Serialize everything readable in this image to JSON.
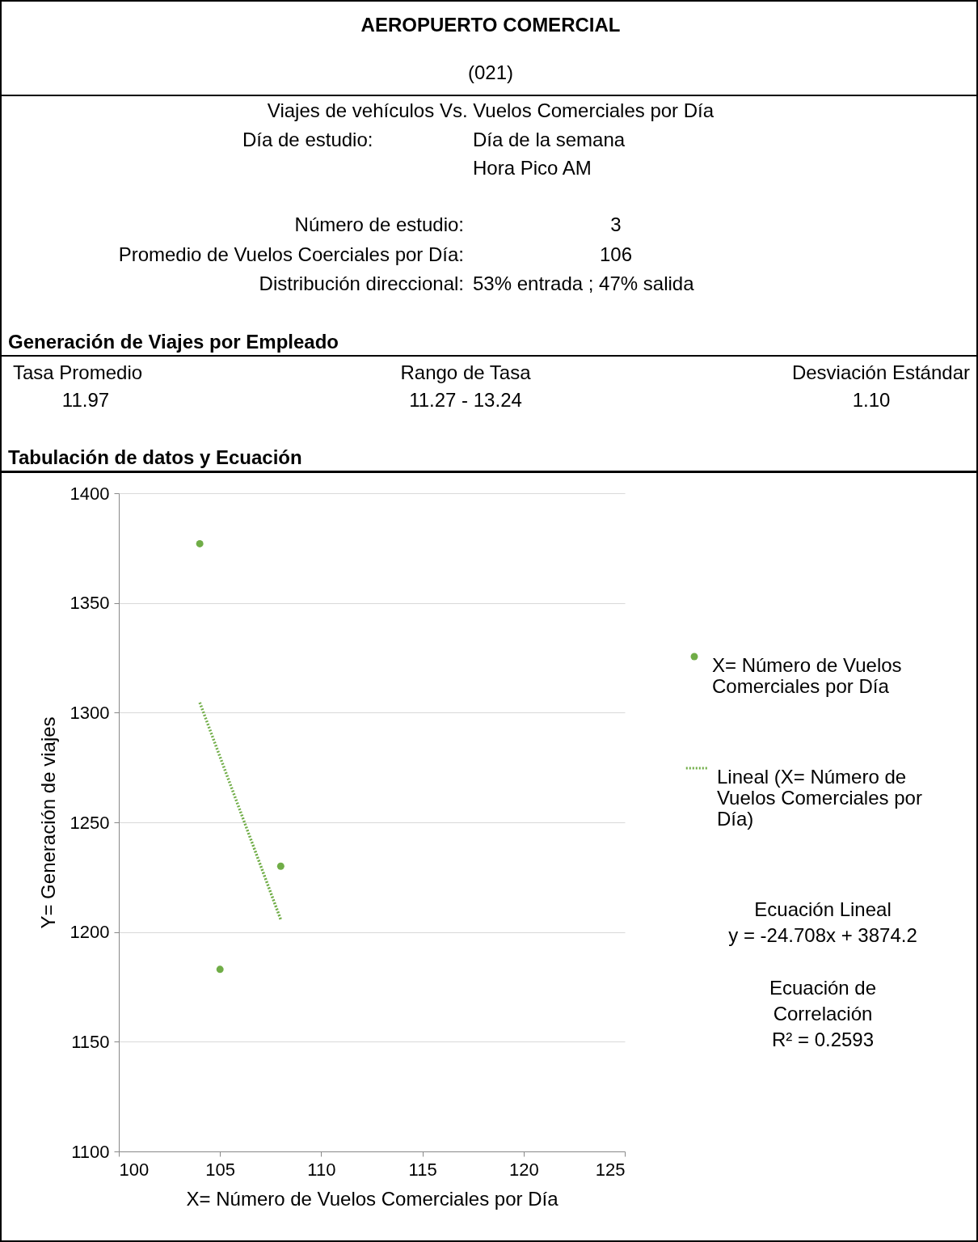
{
  "chart_data": {
    "type": "scatter",
    "title": "AEROPUERTO COMERCIAL",
    "subtitle": "(021)",
    "xlabel": "X= Número de Vuelos Comerciales por Día",
    "ylabel": "Y= Generación de viajes",
    "annotations": [
      "Viajes de vehículos Vs. Vuelos Comerciales por Día",
      "Día de estudio:",
      "Día de la semana",
      "Hora Pico AM",
      "Número de estudio:",
      "3",
      "Promedio de Vuelos Coerciales por Día:",
      "106",
      "Distribución direccional:",
      "53% entrada ; 47% salida",
      "Generación de Viajes por Empleado",
      "Tasa Promedio",
      "Rango de Tasa",
      "Desviación Estándar",
      "11.97",
      "11.27 - 13.24",
      "1.10",
      "Tabulación de datos y Ecuación",
      "Ecuación Lineal",
      "y = -24.708x + 3874.2",
      "Ecuación de Correlación",
      "R² = 0.2593"
    ],
    "series": [
      {
        "name": "X= Número de Vuelos Comerciales por Día",
        "type": "scatter",
        "color": "#70ad47",
        "marker": "circle",
        "x": [
          104,
          105,
          108
        ],
        "values": [
          1377,
          1183,
          1230
        ]
      },
      {
        "name": "Lineal (X= Número de Vuelos Comerciales por Día)",
        "type": "line",
        "color": "#70ad47",
        "line_style": "dotted",
        "x": [
          104,
          108
        ],
        "values": [
          1304.6,
          1205.7
        ]
      }
    ],
    "xlim": [
      100,
      125
    ],
    "xticks": [
      100,
      105,
      110,
      115,
      120,
      125
    ],
    "ylim": [
      1100,
      1400
    ],
    "yticks": [
      1100,
      1150,
      1200,
      1250,
      1300,
      1350,
      1400
    ],
    "grid": "y",
    "legend": "right"
  }
}
